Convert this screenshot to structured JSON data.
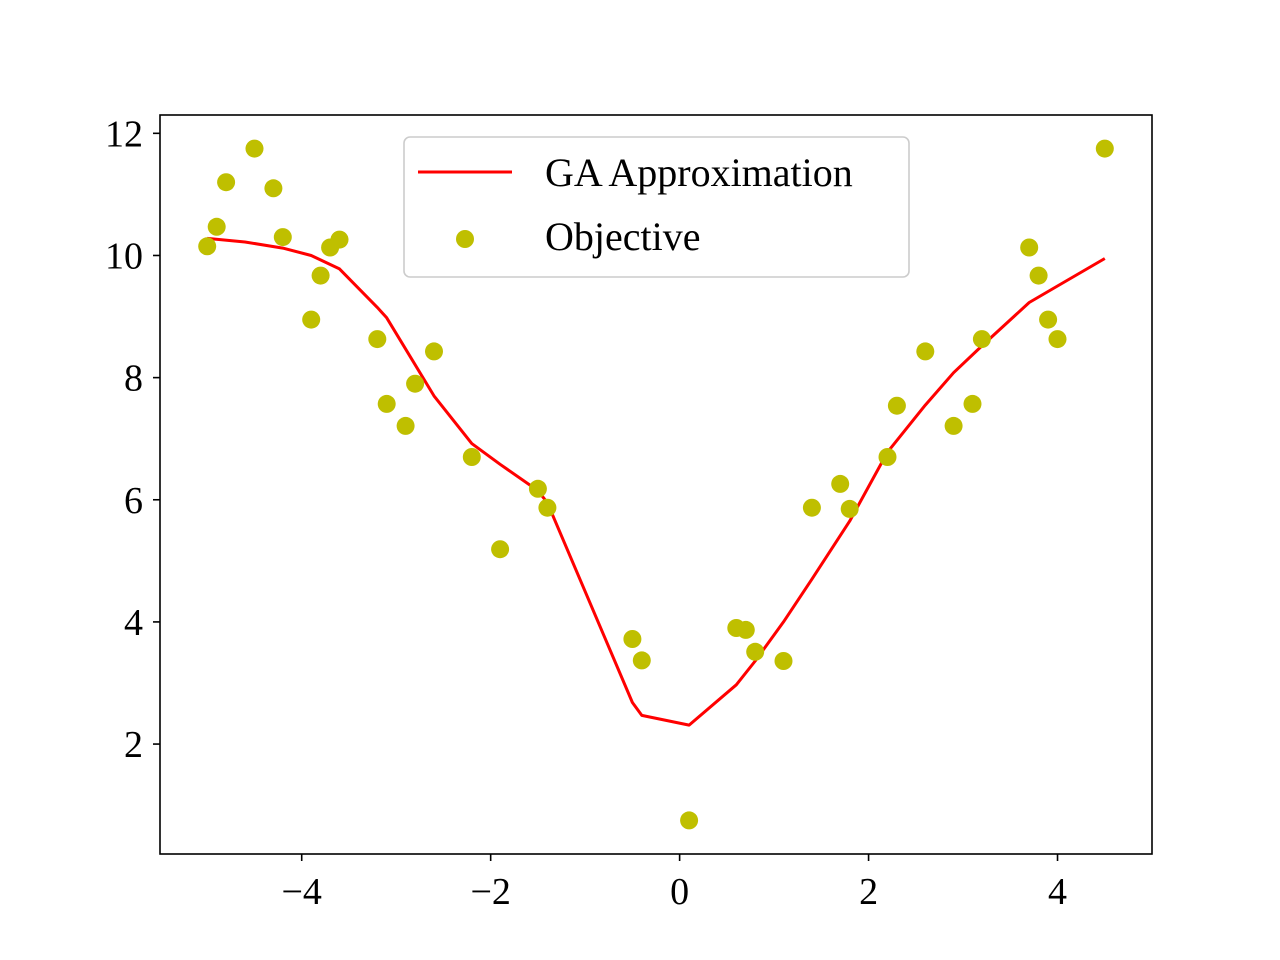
{
  "chart_data": {
    "type": "scatter",
    "title": "",
    "xlabel": "",
    "ylabel": "",
    "xlim": [
      -5.5,
      5.0
    ],
    "ylim": [
      0.2,
      12.3
    ],
    "x_ticks": [
      -4,
      -2,
      0,
      2,
      4
    ],
    "x_tick_labels": [
      "−4",
      "−2",
      "0",
      "2",
      "4"
    ],
    "y_ticks": [
      2,
      4,
      6,
      8,
      10,
      12
    ],
    "y_tick_labels": [
      "2",
      "4",
      "6",
      "8",
      "10",
      "12"
    ],
    "grid": false,
    "legend_position": "upper center",
    "series": [
      {
        "name": "GA Approximation",
        "kind": "line",
        "color": "#ff0000",
        "x": [
          -5.0,
          -4.6,
          -4.2,
          -3.9,
          -3.6,
          -3.2,
          -3.1,
          -2.6,
          -2.2,
          -1.9,
          -1.5,
          -1.4,
          -0.5,
          -0.4,
          0.1,
          0.6,
          0.8,
          1.1,
          1.4,
          1.8,
          2.2,
          2.6,
          2.9,
          3.2,
          3.7,
          4.0,
          4.5
        ],
        "y": [
          10.28,
          10.22,
          10.12,
          10.0,
          9.78,
          9.15,
          8.98,
          7.7,
          6.92,
          6.58,
          6.15,
          5.95,
          2.68,
          2.47,
          2.31,
          2.97,
          3.36,
          4.0,
          4.7,
          5.65,
          6.78,
          7.55,
          8.08,
          8.52,
          9.23,
          9.5,
          9.95
        ]
      },
      {
        "name": "Objective",
        "kind": "scatter",
        "color": "#bfbf00",
        "x": [
          -5.0,
          -4.9,
          -4.8,
          -4.5,
          -4.3,
          -4.2,
          -3.9,
          -3.8,
          -3.7,
          -3.6,
          -3.2,
          -3.1,
          -2.9,
          -2.8,
          -2.6,
          -2.2,
          -1.9,
          -1.5,
          -1.4,
          -0.5,
          -0.4,
          0.1,
          0.6,
          0.7,
          0.8,
          1.1,
          1.4,
          1.7,
          1.8,
          2.2,
          2.3,
          2.6,
          2.9,
          3.1,
          3.2,
          3.7,
          3.8,
          3.9,
          4.0,
          4.5
        ],
        "y": [
          10.15,
          10.47,
          11.2,
          11.75,
          11.1,
          10.3,
          8.95,
          9.67,
          10.13,
          10.26,
          8.63,
          7.57,
          7.21,
          7.9,
          8.43,
          6.7,
          5.19,
          6.18,
          5.87,
          3.72,
          3.37,
          0.75,
          3.9,
          3.87,
          3.51,
          3.36,
          5.87,
          6.26,
          5.85,
          6.7,
          7.54,
          8.43,
          7.21,
          7.57,
          8.63,
          10.13,
          9.67,
          8.95,
          8.63,
          11.75
        ]
      }
    ]
  }
}
